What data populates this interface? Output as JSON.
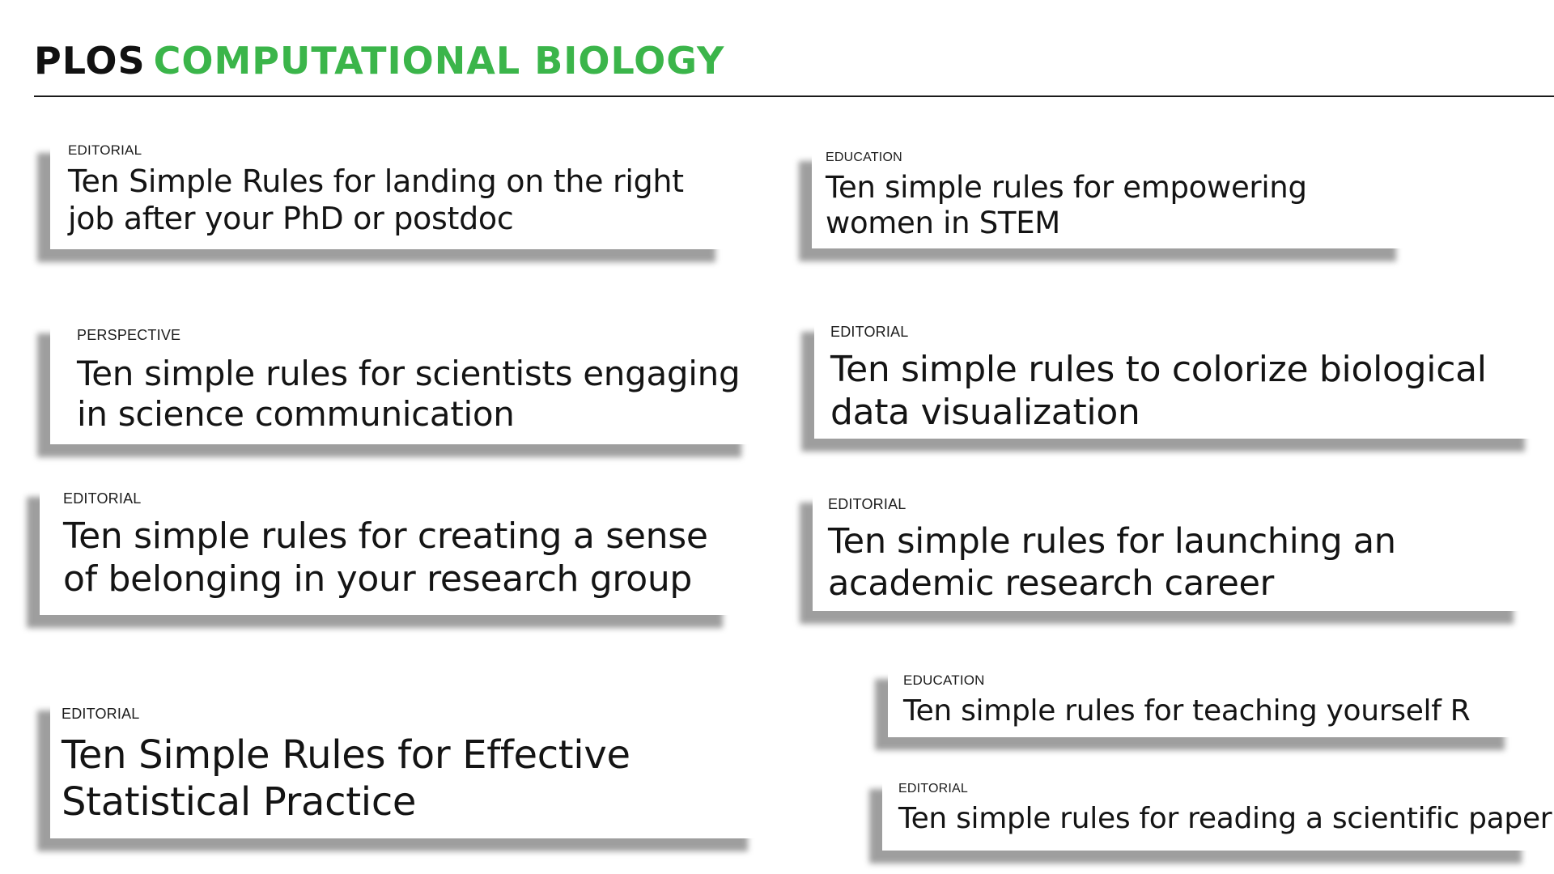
{
  "header": {
    "brand": "PLOS",
    "journal": "COMPUTATIONAL BIOLOGY"
  },
  "articles": [
    {
      "type": "EDITORIAL",
      "title": "Ten Simple Rules for landing on the right job after your PhD or postdoc"
    },
    {
      "type": "EDUCATION",
      "title": "Ten simple rules for empowering women in STEM"
    },
    {
      "type": "PERSPECTIVE",
      "title": "Ten simple rules for scientists engaging in science communication"
    },
    {
      "type": "EDITORIAL",
      "title": "Ten simple rules to colorize biological data visualization"
    },
    {
      "type": "EDITORIAL",
      "title": "Ten simple rules for creating a sense of belonging in your research group"
    },
    {
      "type": "EDITORIAL",
      "title": "Ten simple rules for launching an academic research career"
    },
    {
      "type": "EDITORIAL",
      "title": "Ten Simple Rules for Effective Statistical Practice"
    },
    {
      "type": "EDUCATION",
      "title": "Ten simple rules for teaching yourself R"
    },
    {
      "type": "EDITORIAL",
      "title": "Ten simple rules for reading a scientific paper"
    }
  ]
}
